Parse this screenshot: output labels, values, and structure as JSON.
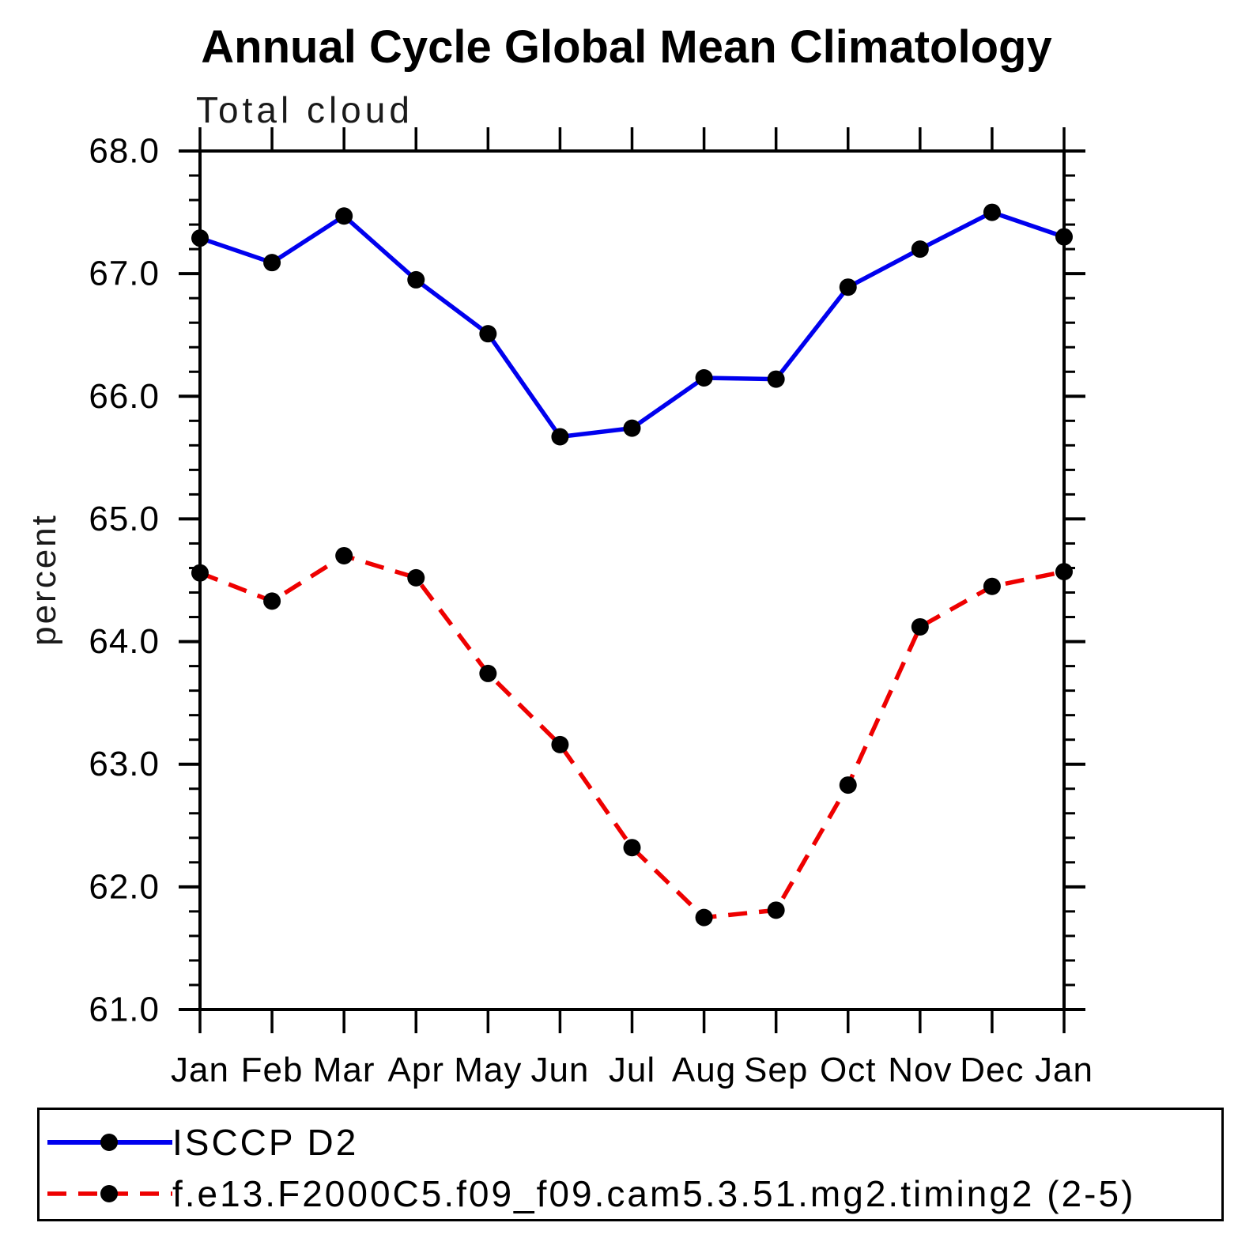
{
  "header": {
    "title": "Annual Cycle Global Mean Climatology",
    "subtitle": "Total cloud"
  },
  "y_axis": {
    "label": "percent"
  },
  "legend": {
    "items": [
      {
        "label": "ISCCP D2",
        "color": "#0000ee",
        "style": "solid"
      },
      {
        "label": "f.e13.F2000C5.f09_f09.cam5.3.51.mg2.timing2 (2-5)",
        "color": "#ee0000",
        "style": "dashed"
      }
    ]
  },
  "chart_data": {
    "type": "line",
    "title": "Annual Cycle Global Mean Climatology",
    "subtitle": "Total cloud",
    "ylabel": "percent",
    "xlabel": "",
    "categories": [
      "Jan",
      "Feb",
      "Mar",
      "Apr",
      "May",
      "Jun",
      "Jul",
      "Aug",
      "Sep",
      "Oct",
      "Nov",
      "Dec",
      "Jan"
    ],
    "series": [
      {
        "name": "ISCCP D2",
        "color": "#0000ee",
        "style": "solid",
        "values": [
          67.29,
          67.09,
          67.47,
          66.95,
          66.51,
          65.67,
          65.74,
          66.15,
          66.14,
          66.89,
          67.2,
          67.5,
          67.3
        ]
      },
      {
        "name": "f.e13.F2000C5.f09_f09.cam5.3.51.mg2.timing2 (2-5)",
        "color": "#ee0000",
        "style": "dashed",
        "values": [
          64.56,
          64.33,
          64.7,
          64.52,
          63.74,
          63.16,
          62.32,
          61.75,
          61.81,
          62.83,
          64.12,
          64.45,
          64.57
        ]
      }
    ],
    "ylim": [
      61.0,
      68.0
    ],
    "yticks": [
      61.0,
      62.0,
      63.0,
      64.0,
      65.0,
      66.0,
      67.0,
      68.0
    ],
    "ytick_labels": [
      "61.0",
      "62.0",
      "63.0",
      "64.0",
      "65.0",
      "66.0",
      "67.0",
      "68.0"
    ],
    "minor_tick_interval": 0.2,
    "grid": false,
    "marker": "filled-circle",
    "marker_color": "#000000",
    "legend_position": "bottom"
  }
}
